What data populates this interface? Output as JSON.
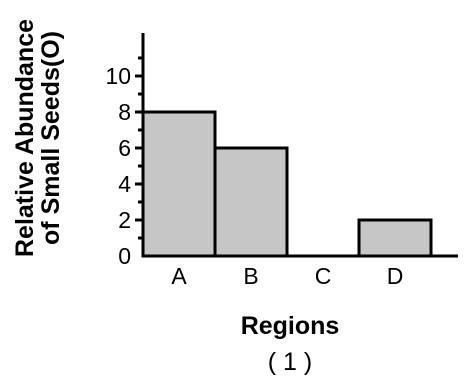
{
  "chart_data": {
    "type": "bar",
    "categories": [
      "A",
      "B",
      "C",
      "D"
    ],
    "values": [
      8,
      6,
      0,
      2
    ],
    "ylabel_line1": "Relative Abundance",
    "ylabel_line2": "of Small Seeds(O)",
    "xlabel": "Regions",
    "caption": "( 1 )",
    "ylim": [
      0,
      12
    ],
    "yticks": [
      0,
      2,
      4,
      6,
      8,
      10
    ],
    "grid": false,
    "bar_color": "#c6c6c6"
  }
}
